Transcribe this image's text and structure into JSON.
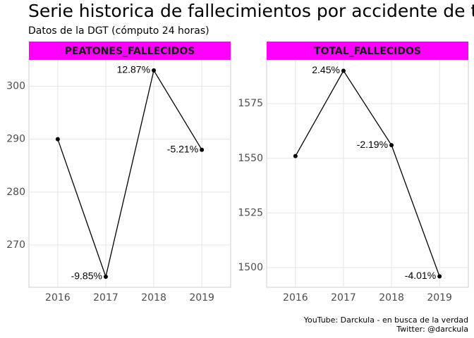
{
  "title": "Serie historica de fallecimientos por accidente de trá",
  "subtitle": "Datos de la DGT (cómputo 24 horas)",
  "caption": [
    "YouTube: Darckula - en busca de la verdad",
    "Twitter: @darckula"
  ],
  "chart_data": [
    {
      "type": "line",
      "strip_label": "PEATONES_FALLECIDOS",
      "strip_color": "#ff00ff",
      "x": [
        2016,
        2017,
        2018,
        2019
      ],
      "series": [
        {
          "color": "#000000",
          "values": [
            290,
            264,
            303,
            288
          ]
        }
      ],
      "point_labels": [
        null,
        "-9.85%",
        "12.87%",
        "-5.21%"
      ],
      "xlim": [
        2015.4,
        2019.6
      ],
      "xticks": [
        2016,
        2017,
        2018,
        2019
      ],
      "ylim": [
        262,
        305
      ],
      "yticks": [
        270,
        280,
        290,
        300
      ],
      "grid": true
    },
    {
      "type": "line",
      "strip_label": "TOTAL_FALLECIDOS",
      "strip_color": "#ff00ff",
      "x": [
        2016,
        2017,
        2018,
        2019
      ],
      "series": [
        {
          "color": "#000000",
          "values": [
            1551,
            1590,
            1556,
            1496
          ]
        }
      ],
      "point_labels": [
        null,
        "2.45%",
        "-2.19%",
        "-4.01%"
      ],
      "xlim": [
        2015.4,
        2019.6
      ],
      "xticks": [
        2016,
        2017,
        2018,
        2019
      ],
      "ylim": [
        1491,
        1595
      ],
      "yticks": [
        1500,
        1525,
        1550,
        1575
      ],
      "grid": true
    }
  ]
}
